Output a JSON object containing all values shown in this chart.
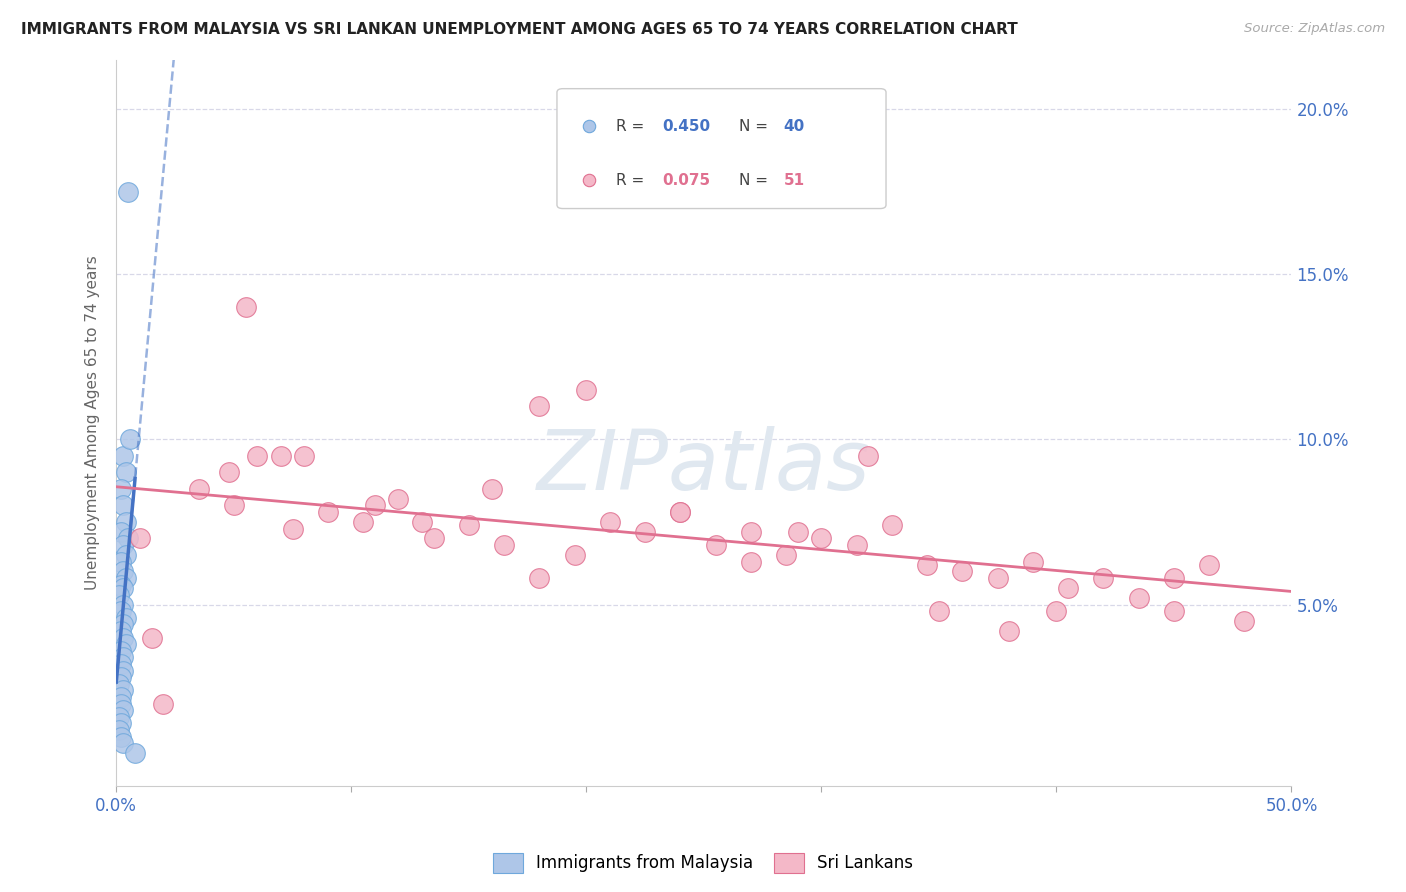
{
  "title": "IMMIGRANTS FROM MALAYSIA VS SRI LANKAN UNEMPLOYMENT AMONG AGES 65 TO 74 YEARS CORRELATION CHART",
  "source": "Source: ZipAtlas.com",
  "ylabel": "Unemployment Among Ages 65 to 74 years",
  "xlim": [
    0,
    0.5
  ],
  "ylim": [
    -0.005,
    0.215
  ],
  "xtick_vals": [
    0.0,
    0.1,
    0.2,
    0.3,
    0.4,
    0.5
  ],
  "ytick_vals": [
    0.05,
    0.1,
    0.15,
    0.2
  ],
  "R_blue": 0.45,
  "N_blue": 40,
  "R_pink": 0.075,
  "N_pink": 51,
  "blue_fill": "#aec6e8",
  "blue_edge": "#6fa8dc",
  "blue_line_color": "#4472c4",
  "pink_fill": "#f4b8c8",
  "pink_edge": "#e07090",
  "pink_line_color": "#e07090",
  "legend_label_blue": "Immigrants from Malaysia",
  "legend_label_pink": "Sri Lankans",
  "blue_scatter_x": [
    0.005,
    0.003,
    0.004,
    0.002,
    0.006,
    0.003,
    0.004,
    0.002,
    0.005,
    0.003,
    0.004,
    0.002,
    0.003,
    0.004,
    0.002,
    0.003,
    0.001,
    0.003,
    0.002,
    0.004,
    0.003,
    0.002,
    0.003,
    0.004,
    0.002,
    0.003,
    0.002,
    0.003,
    0.002,
    0.001,
    0.003,
    0.002,
    0.002,
    0.003,
    0.001,
    0.002,
    0.001,
    0.002,
    0.003,
    0.008
  ],
  "blue_scatter_y": [
    0.175,
    0.095,
    0.09,
    0.085,
    0.1,
    0.08,
    0.075,
    0.072,
    0.07,
    0.068,
    0.065,
    0.063,
    0.06,
    0.058,
    0.056,
    0.055,
    0.053,
    0.05,
    0.048,
    0.046,
    0.044,
    0.042,
    0.04,
    0.038,
    0.036,
    0.034,
    0.032,
    0.03,
    0.028,
    0.026,
    0.024,
    0.022,
    0.02,
    0.018,
    0.016,
    0.014,
    0.012,
    0.01,
    0.008,
    0.005
  ],
  "pink_scatter_x": [
    0.01,
    0.02,
    0.035,
    0.048,
    0.06,
    0.075,
    0.09,
    0.105,
    0.12,
    0.135,
    0.15,
    0.165,
    0.18,
    0.195,
    0.21,
    0.225,
    0.24,
    0.255,
    0.27,
    0.285,
    0.3,
    0.315,
    0.33,
    0.345,
    0.36,
    0.375,
    0.39,
    0.405,
    0.42,
    0.435,
    0.45,
    0.465,
    0.48,
    0.08,
    0.16,
    0.24,
    0.055,
    0.11,
    0.2,
    0.32,
    0.4,
    0.45,
    0.05,
    0.13,
    0.27,
    0.35,
    0.18,
    0.29,
    0.015,
    0.07,
    0.38
  ],
  "pink_scatter_y": [
    0.07,
    0.02,
    0.085,
    0.09,
    0.095,
    0.073,
    0.078,
    0.075,
    0.082,
    0.07,
    0.074,
    0.068,
    0.11,
    0.065,
    0.075,
    0.072,
    0.078,
    0.068,
    0.072,
    0.065,
    0.07,
    0.068,
    0.074,
    0.062,
    0.06,
    0.058,
    0.063,
    0.055,
    0.058,
    0.052,
    0.048,
    0.062,
    0.045,
    0.095,
    0.085,
    0.078,
    0.14,
    0.08,
    0.115,
    0.095,
    0.048,
    0.058,
    0.08,
    0.075,
    0.063,
    0.048,
    0.058,
    0.072,
    0.04,
    0.095,
    0.042
  ],
  "watermark": "ZIPatlas",
  "background_color": "#ffffff",
  "grid_color": "#d8d8e8"
}
